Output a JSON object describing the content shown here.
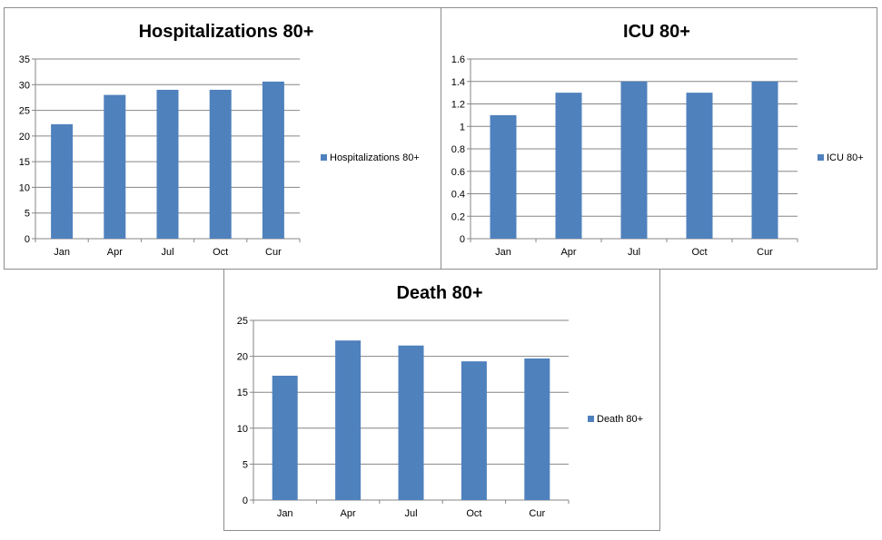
{
  "chart_data": [
    {
      "type": "bar",
      "title": "Hospitalizations 80+",
      "categories": [
        "Jan",
        "Apr",
        "Jul",
        "Oct",
        "Cur"
      ],
      "series": [
        {
          "name": "Hospitalizations 80+",
          "values": [
            22.3,
            28.0,
            29.0,
            29.0,
            30.6
          ]
        }
      ],
      "ylim": [
        0,
        35
      ],
      "yticks": [
        "0",
        "5",
        "10",
        "15",
        "20",
        "25",
        "30",
        "35"
      ],
      "ytick_values": [
        0,
        5,
        10,
        15,
        20,
        25,
        30,
        35
      ],
      "grid": true,
      "legend": "right",
      "color": "#4f81bd"
    },
    {
      "type": "bar",
      "title": "ICU 80+",
      "categories": [
        "Jan",
        "Apr",
        "Jul",
        "Oct",
        "Cur"
      ],
      "series": [
        {
          "name": "ICU 80+",
          "values": [
            1.1,
            1.3,
            1.4,
            1.3,
            1.4
          ]
        }
      ],
      "ylim": [
        0,
        1.6
      ],
      "yticks": [
        "0",
        "0.2",
        "0.4",
        "0.6",
        "0.8",
        "1",
        "1.2",
        "1.4",
        "1.6"
      ],
      "ytick_values": [
        0,
        0.2,
        0.4,
        0.6,
        0.8,
        1,
        1.2,
        1.4,
        1.6
      ],
      "grid": true,
      "legend": "right",
      "color": "#4f81bd"
    },
    {
      "type": "bar",
      "title": "Death 80+",
      "categories": [
        "Jan",
        "Apr",
        "Jul",
        "Oct",
        "Cur"
      ],
      "series": [
        {
          "name": "Death 80+",
          "values": [
            17.3,
            22.2,
            21.5,
            19.3,
            19.7
          ]
        }
      ],
      "ylim": [
        0,
        25
      ],
      "yticks": [
        "0",
        "5",
        "10",
        "15",
        "20",
        "25"
      ],
      "ytick_values": [
        0,
        5,
        10,
        15,
        20,
        25
      ],
      "grid": true,
      "legend": "right",
      "color": "#4f81bd"
    }
  ]
}
